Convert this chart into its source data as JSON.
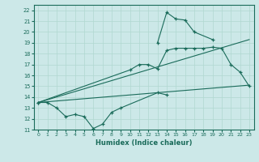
{
  "xlabel": "Humidex (Indice chaleur)",
  "bg_color": "#cce8e8",
  "grid_color": "#b0d8d0",
  "line_color": "#1a6b5a",
  "xlim": [
    -0.5,
    23.5
  ],
  "ylim": [
    11,
    22.5
  ],
  "xticks": [
    0,
    1,
    2,
    3,
    4,
    5,
    6,
    7,
    8,
    9,
    10,
    11,
    12,
    13,
    14,
    15,
    16,
    17,
    18,
    19,
    20,
    21,
    22,
    23
  ],
  "yticks": [
    11,
    12,
    13,
    14,
    15,
    16,
    17,
    18,
    19,
    20,
    21,
    22
  ],
  "trend_low": {
    "x": [
      0,
      23
    ],
    "y": [
      13.5,
      15.1
    ]
  },
  "trend_high": {
    "x": [
      0,
      23
    ],
    "y": [
      13.5,
      19.3
    ]
  },
  "line_bot": {
    "x": [
      0,
      1,
      2,
      3,
      4,
      5,
      6,
      7,
      8,
      9,
      13,
      14
    ],
    "y": [
      13.5,
      13.5,
      13.0,
      12.2,
      12.4,
      12.2,
      11.1,
      11.5,
      12.6,
      13.0,
      14.4,
      14.2
    ]
  },
  "line_mid": {
    "x": [
      0,
      10,
      11,
      12,
      13,
      14,
      15,
      16,
      17,
      18,
      19,
      20,
      21,
      22,
      23
    ],
    "y": [
      13.5,
      16.5,
      17.0,
      17.0,
      16.6,
      18.3,
      18.5,
      18.5,
      18.5,
      18.5,
      18.6,
      18.5,
      17.0,
      16.3,
      15.0
    ]
  },
  "line_top": {
    "x": [
      13,
      14,
      15,
      16,
      17,
      19
    ],
    "y": [
      19.0,
      21.8,
      21.2,
      21.1,
      20.0,
      19.3
    ]
  }
}
